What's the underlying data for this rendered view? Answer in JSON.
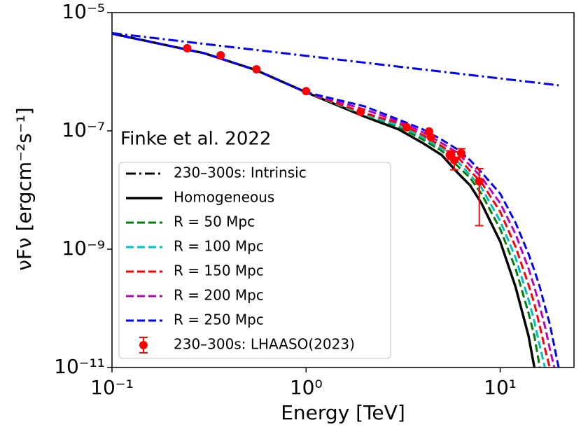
{
  "chart_data": {
    "type": "line",
    "annotation": "Finke et al. 2022",
    "xlabel": "Energy [TeV]",
    "ylabel": "νFν  [ergcm⁻²s⁻¹]",
    "xscale": "log",
    "yscale": "log",
    "xlim": [
      0.1,
      24
    ],
    "ylim": [
      1e-11,
      1e-05
    ],
    "xticks": [
      {
        "value": 0.1,
        "label": "10⁻¹"
      },
      {
        "value": 1,
        "label": "10⁰"
      },
      {
        "value": 10,
        "label": "10¹"
      }
    ],
    "yticks": [
      {
        "value": 1e-11,
        "label": "10⁻¹¹"
      },
      {
        "value": 1e-09,
        "label": "10⁻⁹"
      },
      {
        "value": 1e-07,
        "label": "10⁻⁷"
      },
      {
        "value": 1e-05,
        "label": "10⁻⁵"
      }
    ],
    "legend": "lower left",
    "x": [
      0.1,
      0.3,
      0.55,
      1,
      2,
      3,
      4,
      5,
      6,
      7,
      8,
      10,
      12,
      14,
      15,
      16,
      17,
      18,
      19,
      20
    ],
    "series": [
      {
        "name": "230–300s: Intrinsic",
        "color": "#0000ff",
        "style": "dashdot",
        "x": [
          0.1,
          0.3,
          1,
          3,
          10,
          20
        ],
        "values": [
          4.5e-06,
          2.95e-06,
          1.86e-06,
          1.22e-06,
          7.7e-07,
          5.9e-07
        ]
      },
      {
        "name": "Homogeneous",
        "color": "#000000",
        "style": "solid",
        "values": [
          4.4e-06,
          2.05e-06,
          1.07e-06,
          4.5e-07,
          1.75e-07,
          1.06e-07,
          6.2e-08,
          3.9e-08,
          2e-08,
          1.2e-08,
          6e-09,
          1.35e-09,
          2.3e-10,
          3.4e-11,
          1e-11,
          null,
          null,
          null,
          null,
          null
        ]
      },
      {
        "name": "R = 50 Mpc",
        "color": "#008000",
        "style": "dashed",
        "values": [
          4.4e-06,
          2.05e-06,
          1.07e-06,
          4.5e-07,
          1.86e-07,
          1.17e-07,
          7.1e-08,
          4.6e-08,
          2.6e-08,
          1.6e-08,
          8.7e-09,
          2.2e-09,
          4.7e-10,
          8.3e-11,
          3.4e-11,
          1e-11,
          null,
          null,
          null,
          null
        ]
      },
      {
        "name": "R = 100 Mpc",
        "color": "#00bfbf",
        "style": "dashed",
        "values": [
          4.4e-06,
          2.05e-06,
          1.07e-06,
          4.5e-07,
          1.9e-07,
          1.23e-07,
          7.8e-08,
          5e-08,
          3.1e-08,
          1.8e-08,
          1.1e-08,
          3e-09,
          7.2e-10,
          1.4e-10,
          6e-11,
          2.3e-11,
          1e-11,
          null,
          null,
          null
        ]
      },
      {
        "name": "R = 150 Mpc",
        "color": "#ff0000",
        "style": "dashed",
        "values": [
          4.4e-06,
          2.05e-06,
          1.07e-06,
          4.5e-07,
          2e-07,
          1.35e-07,
          8.5e-08,
          5.5e-08,
          3.7e-08,
          2.1e-08,
          1.35e-08,
          4.3e-09,
          1.1e-09,
          2.5e-10,
          1.2e-10,
          5e-11,
          2.1e-11,
          1e-11,
          null,
          null
        ]
      },
      {
        "name": "R = 200 Mpc",
        "color": "#bf00bf",
        "style": "dashed",
        "values": [
          4.4e-06,
          2.05e-06,
          1.07e-06,
          4.5e-07,
          2.3e-07,
          1.45e-07,
          9.5e-08,
          6.2e-08,
          4.3e-08,
          2.6e-08,
          1.65e-08,
          6e-09,
          1.8e-09,
          4.7e-10,
          2.3e-10,
          1.07e-10,
          5e-11,
          2.1e-11,
          1e-11,
          null
        ]
      },
      {
        "name": "R = 250 Mpc",
        "color": "#0000ff",
        "style": "dashed",
        "values": [
          4.4e-06,
          2.05e-06,
          1.07e-06,
          4.5e-07,
          2.6e-07,
          1.55e-07,
          1.06e-07,
          7.1e-08,
          4.9e-08,
          3.2e-08,
          2e-08,
          8.7e-09,
          2.8e-09,
          8.3e-10,
          4.4e-10,
          2.3e-10,
          1.07e-10,
          5.5e-11,
          2.3e-11,
          1e-11
        ]
      },
      {
        "name": "230–300s: LHAASO(2023)",
        "color": "#ff0000",
        "style": "errorbar",
        "x": [
          0.244,
          0.363,
          0.555,
          1.0,
          1.91,
          3.3,
          4.3,
          4.4,
          5.5,
          5.8,
          6.3,
          7.8
        ],
        "values": [
          2.5e-06,
          1.9e-06,
          1.1e-06,
          4.7e-07,
          2.1e-07,
          1.15e-07,
          9.8e-08,
          7.8e-08,
          3.9e-08,
          3.2e-08,
          4.2e-08,
          1.4e-08
        ],
        "lower": [
          null,
          null,
          null,
          null,
          null,
          null,
          null,
          null,
          3.3e-08,
          2.2e-08,
          3.6e-08,
          2.5e-09
        ],
        "upper": [
          null,
          null,
          null,
          null,
          null,
          null,
          null,
          null,
          4.6e-08,
          4.4e-08,
          5e-08,
          2.3e-08
        ]
      }
    ]
  }
}
